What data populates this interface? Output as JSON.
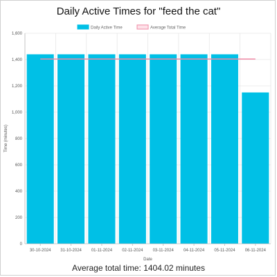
{
  "chart_data": {
    "type": "bar",
    "title": "Daily Active Times for \"feed the cat\"",
    "xlabel": "Date",
    "ylabel": "Time (minutes)",
    "ylim": [
      0,
      1600
    ],
    "yticks": [
      "0",
      "200",
      "400",
      "600",
      "800",
      "1,000",
      "1,200",
      "1,400",
      "1,600"
    ],
    "grid": true,
    "legend_position": "top",
    "categories": [
      "30-10-2024",
      "31-10-2024",
      "01-11-2024",
      "02-11-2024",
      "03-11-2024",
      "04-11-2024",
      "05-11-2024",
      "06-11-2024"
    ],
    "series": [
      {
        "name": "Daily Active Time",
        "type": "bar",
        "color": "#00c0e6",
        "values": [
          1440,
          1440,
          1440,
          1440,
          1440,
          1440,
          1440,
          1150
        ]
      },
      {
        "name": "Average Total Time",
        "type": "line",
        "color": "#f08aa6",
        "fill": "#fde1e8",
        "values": [
          1404.02,
          1404.02,
          1404.02,
          1404.02,
          1404.02,
          1404.02,
          1404.02,
          1404.02
        ]
      }
    ]
  },
  "summary": "Average total time: 1404.02 minutes"
}
